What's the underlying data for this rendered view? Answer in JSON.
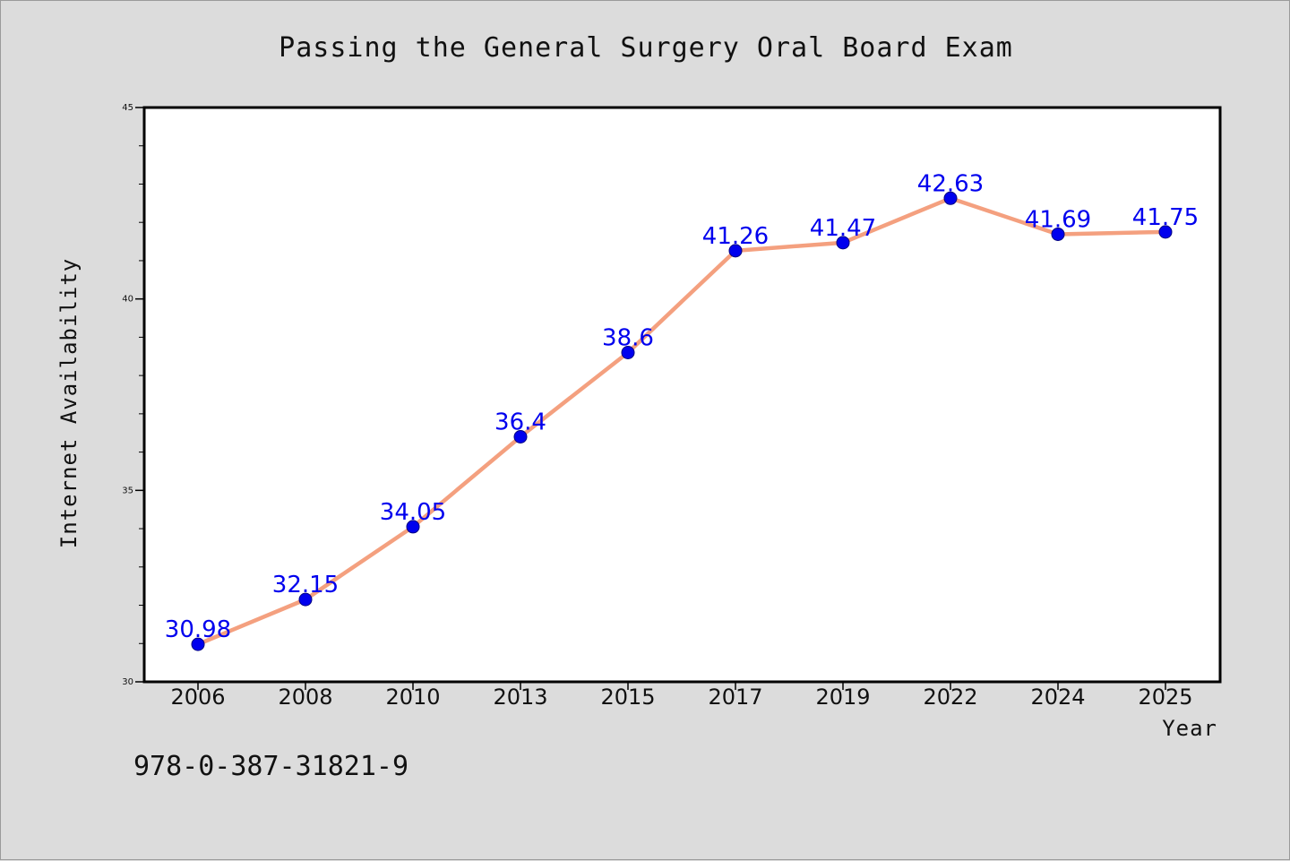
{
  "chart_data": {
    "type": "line",
    "title": "Passing the General Surgery Oral Board Exam",
    "xlabel": "Year",
    "ylabel": "Internet Availability",
    "categories": [
      "2006",
      "2008",
      "2010",
      "2013",
      "2015",
      "2017",
      "2019",
      "2022",
      "2024",
      "2025"
    ],
    "series": [
      {
        "values": [
          30.98,
          32.15,
          34.05,
          36.4,
          38.6,
          41.26,
          41.47,
          42.63,
          41.69,
          41.75
        ],
        "labels": [
          "30.98",
          "32.15",
          "34.05",
          "36.4",
          "38.6",
          "41.26",
          "41.47",
          "42.63",
          "41.69",
          "41.75"
        ]
      }
    ],
    "ylim": [
      30,
      45
    ],
    "yticks": [
      "30",
      "35",
      "40",
      "45"
    ],
    "grid": false,
    "legend": "none",
    "colors": {
      "line": "#f4a07f",
      "marker": "#0000ee",
      "label": "#0000ee",
      "plot_background": "#ffffff",
      "page_background": "#dcdcdc"
    }
  },
  "footer": {
    "isbn": "978-0-387-31821-9"
  }
}
